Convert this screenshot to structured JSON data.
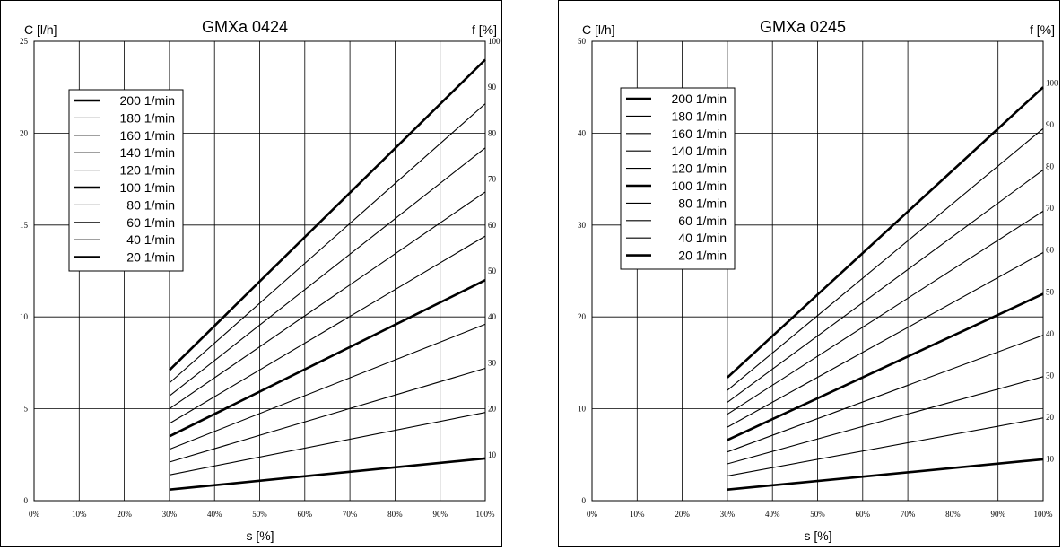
{
  "chart_data": [
    {
      "type": "line",
      "title": "GMXa 0424",
      "ylabel": "C [l/h]",
      "y2label": "f [%]",
      "xlabel": "s [%]",
      "xlim": [
        0,
        100
      ],
      "ylim": [
        0,
        25
      ],
      "y2lim": [
        0,
        100
      ],
      "xticks": [
        "0%",
        "10%",
        "20%",
        "30%",
        "40%",
        "50%",
        "60%",
        "70%",
        "80%",
        "90%",
        "100%"
      ],
      "yticks": [
        "0",
        "5",
        "10",
        "15",
        "20",
        "25"
      ],
      "y2ticks": [
        "10",
        "20",
        "30",
        "40",
        "50",
        "60",
        "70",
        "80",
        "90",
        "100"
      ],
      "grid": true,
      "legend_position": "top-left",
      "series": [
        {
          "name": "200 1/min",
          "bold": true,
          "x": [
            30,
            100
          ],
          "y": [
            7.1,
            24.0
          ]
        },
        {
          "name": "180 1/min",
          "bold": false,
          "x": [
            30,
            100
          ],
          "y": [
            6.4,
            21.6
          ]
        },
        {
          "name": "160 1/min",
          "bold": false,
          "x": [
            30,
            100
          ],
          "y": [
            5.7,
            19.2
          ]
        },
        {
          "name": "140 1/min",
          "bold": false,
          "x": [
            30,
            100
          ],
          "y": [
            5.0,
            16.8
          ]
        },
        {
          "name": "120 1/min",
          "bold": false,
          "x": [
            30,
            100
          ],
          "y": [
            4.2,
            14.4
          ]
        },
        {
          "name": "100 1/min",
          "bold": true,
          "x": [
            30,
            100
          ],
          "y": [
            3.5,
            12.0
          ]
        },
        {
          "name": "80 1/min",
          "bold": false,
          "x": [
            30,
            100
          ],
          "y": [
            2.8,
            9.6
          ]
        },
        {
          "name": "60 1/min",
          "bold": false,
          "x": [
            30,
            100
          ],
          "y": [
            2.1,
            7.2
          ]
        },
        {
          "name": "40 1/min",
          "bold": false,
          "x": [
            30,
            100
          ],
          "y": [
            1.4,
            4.8
          ]
        },
        {
          "name": "20 1/min",
          "bold": true,
          "x": [
            30,
            100
          ],
          "y": [
            0.6,
            2.3
          ]
        }
      ]
    },
    {
      "type": "line",
      "title": "GMXa 0245",
      "ylabel": "C [l/h]",
      "y2label": "f [%]",
      "xlabel": "s [%]",
      "xlim": [
        0,
        100
      ],
      "ylim": [
        0,
        50
      ],
      "y2lim": [
        0,
        110
      ],
      "xticks": [
        "0%",
        "10%",
        "20%",
        "30%",
        "40%",
        "50%",
        "60%",
        "70%",
        "80%",
        "90%",
        "100%"
      ],
      "yticks": [
        "0",
        "10",
        "20",
        "30",
        "40",
        "50"
      ],
      "y2ticks": [
        "10",
        "20",
        "30",
        "40",
        "50",
        "60",
        "70",
        "80",
        "90",
        "100"
      ],
      "grid": true,
      "legend_position": "top-left",
      "series": [
        {
          "name": "200 1/min",
          "bold": true,
          "x": [
            30,
            100
          ],
          "y": [
            13.4,
            45.0
          ]
        },
        {
          "name": "180 1/min",
          "bold": false,
          "x": [
            30,
            100
          ],
          "y": [
            12.0,
            40.5
          ]
        },
        {
          "name": "160 1/min",
          "bold": false,
          "x": [
            30,
            100
          ],
          "y": [
            10.7,
            36.0
          ]
        },
        {
          "name": "140 1/min",
          "bold": false,
          "x": [
            30,
            100
          ],
          "y": [
            9.4,
            31.5
          ]
        },
        {
          "name": "120 1/min",
          "bold": false,
          "x": [
            30,
            100
          ],
          "y": [
            8.0,
            27.0
          ]
        },
        {
          "name": "100 1/min",
          "bold": true,
          "x": [
            30,
            100
          ],
          "y": [
            6.6,
            22.5
          ]
        },
        {
          "name": "80 1/min",
          "bold": false,
          "x": [
            30,
            100
          ],
          "y": [
            5.3,
            18.0
          ]
        },
        {
          "name": "60 1/min",
          "bold": false,
          "x": [
            30,
            100
          ],
          "y": [
            4.0,
            13.5
          ]
        },
        {
          "name": "40 1/min",
          "bold": false,
          "x": [
            30,
            100
          ],
          "y": [
            2.7,
            9.0
          ]
        },
        {
          "name": "20 1/min",
          "bold": true,
          "x": [
            30,
            100
          ],
          "y": [
            1.2,
            4.5
          ]
        }
      ]
    }
  ]
}
